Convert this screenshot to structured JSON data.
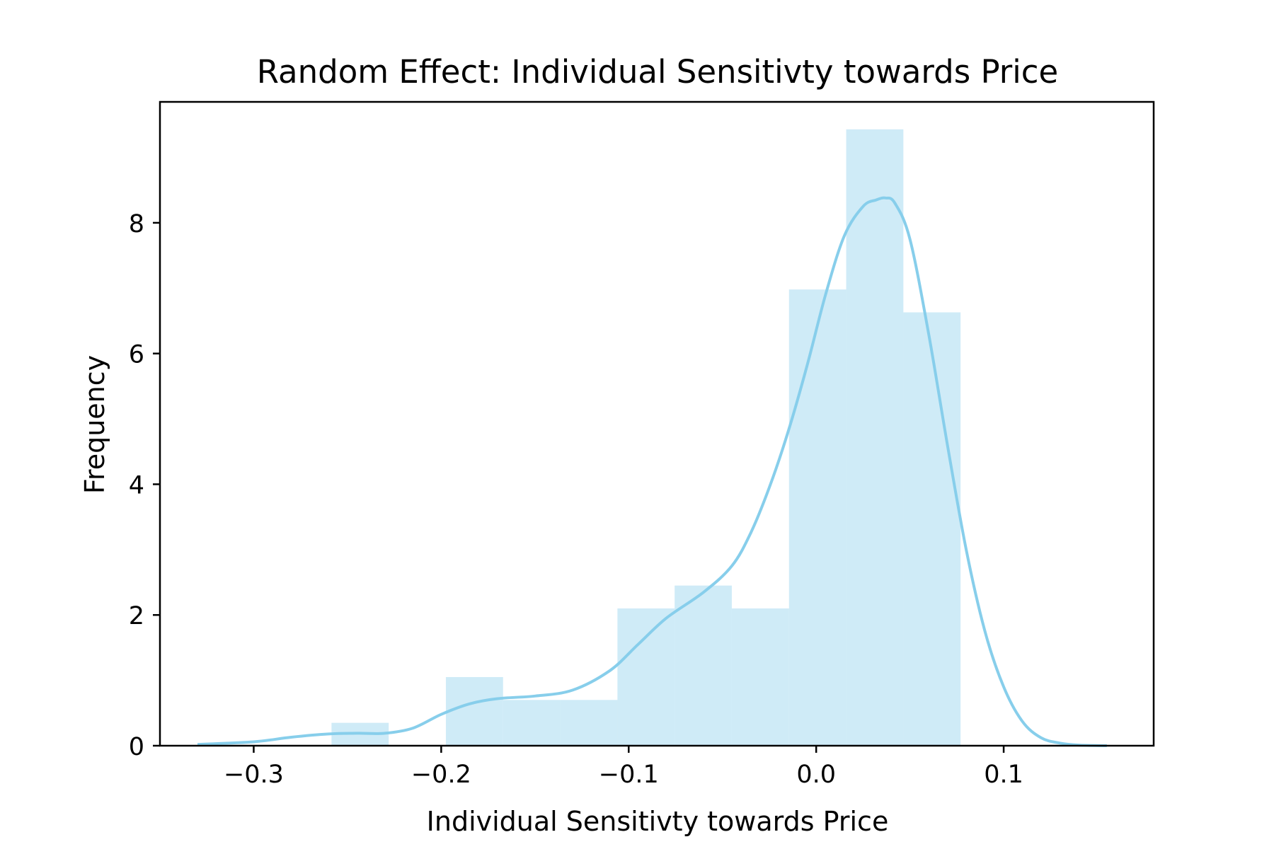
{
  "chart_data": {
    "type": "histogram",
    "title": "Random Effect: Individual Sensitivty towards Price",
    "xlabel": "Individual Sensitivty towards Price",
    "ylabel": "Frequency",
    "xlim": [
      -0.35,
      0.18
    ],
    "ylim": [
      0,
      9.85
    ],
    "x_ticks": [
      {
        "value": -0.3,
        "label": "−0.3"
      },
      {
        "value": -0.2,
        "label": "−0.2"
      },
      {
        "value": -0.1,
        "label": "−0.1"
      },
      {
        "value": 0.0,
        "label": "0.0"
      },
      {
        "value": 0.1,
        "label": "0.1"
      }
    ],
    "y_ticks": [
      {
        "value": 0,
        "label": "0"
      },
      {
        "value": 2,
        "label": "2"
      },
      {
        "value": 4,
        "label": "4"
      },
      {
        "value": 6,
        "label": "6"
      },
      {
        "value": 8,
        "label": "8"
      }
    ],
    "grid": false,
    "bar_color": "#87ceeb",
    "bar_opacity": 0.4,
    "line_color": "#87ceeb",
    "bins": [
      {
        "x0": -0.2585,
        "x1": -0.228,
        "height": 0.35
      },
      {
        "x0": -0.228,
        "x1": -0.1975,
        "height": 0.0
      },
      {
        "x0": -0.1975,
        "x1": -0.167,
        "height": 1.05
      },
      {
        "x0": -0.167,
        "x1": -0.1365,
        "height": 0.7
      },
      {
        "x0": -0.1365,
        "x1": -0.106,
        "height": 0.7
      },
      {
        "x0": -0.106,
        "x1": -0.0755,
        "height": 2.1
      },
      {
        "x0": -0.0755,
        "x1": -0.045,
        "height": 2.45
      },
      {
        "x0": -0.045,
        "x1": -0.0145,
        "height": 2.1
      },
      {
        "x0": -0.0145,
        "x1": 0.016,
        "height": 6.98
      },
      {
        "x0": 0.016,
        "x1": 0.0465,
        "height": 9.43
      },
      {
        "x0": 0.0465,
        "x1": 0.077,
        "height": 6.63
      }
    ],
    "kde": {
      "x": [
        -0.33,
        -0.3,
        -0.28,
        -0.26,
        -0.245,
        -0.23,
        -0.215,
        -0.2,
        -0.185,
        -0.17,
        -0.15,
        -0.13,
        -0.11,
        -0.095,
        -0.08,
        -0.06,
        -0.045,
        -0.035,
        -0.025,
        -0.015,
        -0.005,
        0.005,
        0.015,
        0.025,
        0.032,
        0.037,
        0.042,
        0.05,
        0.06,
        0.07,
        0.08,
        0.09,
        0.1,
        0.11,
        0.12,
        0.13,
        0.14,
        0.155
      ],
      "y": [
        0.02,
        0.06,
        0.13,
        0.18,
        0.19,
        0.19,
        0.27,
        0.48,
        0.64,
        0.72,
        0.76,
        0.85,
        1.15,
        1.55,
        1.95,
        2.35,
        2.75,
        3.25,
        3.95,
        4.8,
        5.8,
        6.9,
        7.8,
        8.25,
        8.35,
        8.38,
        8.3,
        7.75,
        6.3,
        4.6,
        3.0,
        1.75,
        0.9,
        0.37,
        0.12,
        0.04,
        0.01,
        0.0
      ]
    }
  }
}
